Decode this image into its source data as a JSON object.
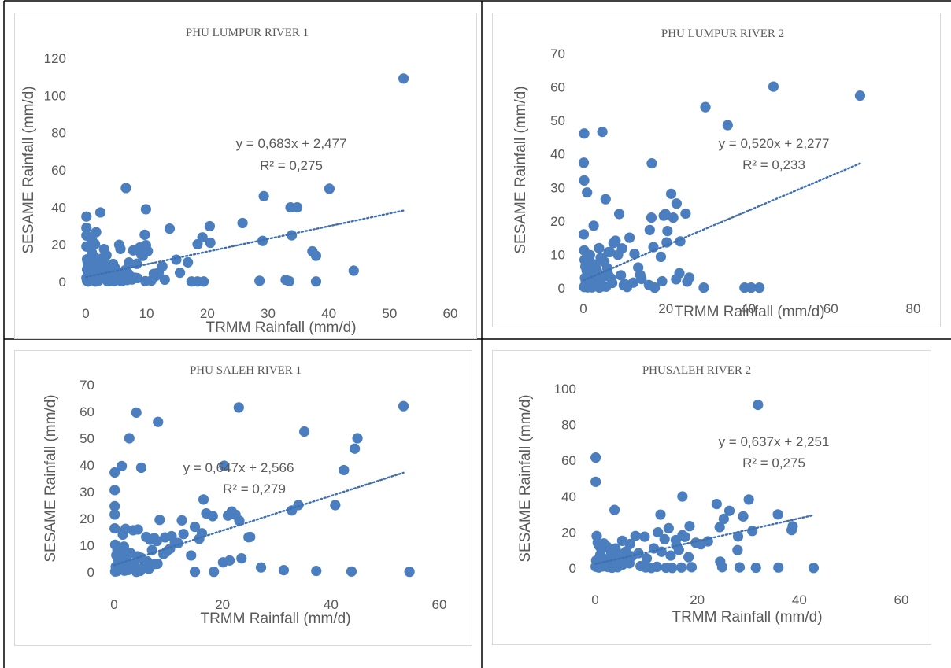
{
  "chart_data": [
    {
      "type": "scatter",
      "title": "PHU LUMPUR RIVER 1",
      "xlabel": "TRMM Rainfall (mm/d)",
      "ylabel": "SESAME Rainfall (mm/d)",
      "xlim": [
        0,
        60
      ],
      "ylim": [
        0,
        120
      ],
      "xticks": [
        "0",
        "10",
        "20",
        "30",
        "40",
        "50",
        "60"
      ],
      "yticks": [
        "0",
        "20",
        "40",
        "60",
        "80",
        "100",
        "120"
      ],
      "trendline": {
        "slope": 0.683,
        "intercept": 2.477,
        "x_range": [
          0,
          52.3
        ]
      },
      "equation": "y = 0,683x + 2,477",
      "r2_label": "R² = 0,275",
      "marker_color": "#4a7ebf",
      "trend_color": "#3e6fb0",
      "x": [
        52.3,
        6.6,
        40.1,
        29.3,
        33.7,
        34.8,
        9.9,
        25.8,
        20.4,
        37.3,
        37.9,
        13.8,
        20.5,
        19.2,
        29.1,
        33.9,
        18.4,
        14.9,
        16.8,
        44.1,
        28.6,
        32.9,
        33.5,
        37.9,
        17.4,
        18.4,
        19.4,
        15.5,
        12.6,
        9.7,
        8.9,
        9.9,
        10.2,
        9.1,
        9.4,
        7.8,
        7.1,
        8.4,
        11.2,
        12.0,
        11.5,
        13.0,
        10.8,
        0.1,
        0.1,
        0.1,
        0.1,
        0.2,
        0.3,
        0.4,
        0.6,
        0.8,
        1.0,
        1.5,
        1.7,
        2.4,
        1.9,
        3.0,
        3.4,
        2.6,
        5.5,
        5.7,
        6.5,
        7.3,
        4.2,
        4.7,
        0.2,
        0.5,
        0.7,
        1.2,
        2.2,
        2.8,
        3.5,
        4.4,
        5.0,
        5.9,
        6.8,
        8.1,
        1.1,
        1.8,
        2.7,
        3.9,
        4.8,
        6.1,
        7.6,
        0.3,
        0.9,
        1.4,
        2.0,
        3.2,
        4.1,
        5.2,
        6.4,
        0.4,
        1.3,
        2.5,
        3.6,
        4.5,
        5.6,
        6.9,
        8.5,
        9.8,
        0.2,
        0.6,
        1.6,
        2.9,
        3.7,
        0.1,
        1.0,
        2.1,
        3.3,
        4.6
      ],
      "y": [
        109.1,
        50.3,
        49.9,
        45.9,
        39.9,
        39.9,
        38.9,
        31.5,
        29.8,
        16.3,
        13.9,
        28.5,
        20.9,
        23.8,
        21.9,
        24.9,
        20.1,
        11.8,
        10.4,
        5.9,
        0.5,
        1.0,
        0.3,
        0.1,
        0.1,
        0.1,
        0.1,
        4.8,
        8.2,
        25.2,
        18.4,
        19.6,
        16.4,
        14.7,
        13.9,
        16.8,
        10.3,
        9.6,
        4.2,
        5.0,
        3.1,
        1.1,
        0.6,
        35.0,
        28.9,
        24.8,
        18.9,
        12.0,
        10.5,
        8.2,
        5.9,
        3.5,
        22.6,
        20.2,
        26.6,
        37.2,
        11.1,
        17.5,
        14.2,
        9.8,
        19.8,
        17.6,
        6.2,
        3.0,
        4.1,
        1.8,
        0.5,
        1.2,
        2.3,
        0.8,
        4.5,
        2.6,
        6.9,
        3.3,
        1.5,
        0.2,
        0.9,
        2.1,
        6.1,
        8.8,
        12.5,
        5.5,
        7.4,
        3.9,
        1.2,
        3.1,
        10.2,
        13.3,
        2.2,
        7.9,
        0.4,
        5.1,
        2.8,
        0.1,
        1.6,
        3.6,
        0.2,
        9.5,
        0.7,
        4.7,
        1.9,
        0.3,
        6.6,
        2.9,
        0.1,
        11.6,
        4.3,
        2.0,
        15.6,
        0.6,
        8.4,
        0.2
      ]
    },
    {
      "type": "scatter",
      "title": "PHU LUMPUR RIVER 2",
      "xlabel": "TRMM Rainfall (mm/d)",
      "ylabel": "SESAME Rainfall (mm/d)",
      "xlim": [
        0,
        80
      ],
      "ylim": [
        0,
        70
      ],
      "xticks": [
        "0",
        "20",
        "40",
        "60",
        "80"
      ],
      "yticks": [
        "0",
        "10",
        "20",
        "30",
        "40",
        "50",
        "60",
        "70"
      ],
      "trendline": {
        "slope": 0.52,
        "intercept": 2.277,
        "x_range": [
          0,
          67.1
        ]
      },
      "equation": "y = 0,520x + 2,277",
      "r2_label": "R² = 0,233",
      "marker_color": "#4a7ebf",
      "trend_color": "#3e6fb0",
      "x": [
        46.1,
        67.1,
        29.6,
        35.0,
        4.6,
        0.2,
        0.1,
        0.2,
        0.9,
        2.5,
        5.4,
        16.6,
        21.3,
        22.6,
        19.9,
        19.5,
        21.8,
        24.8,
        23.5,
        16.1,
        17.0,
        18.8,
        20.2,
        16.5,
        20.4,
        29.2,
        39.1,
        40.7,
        42.7,
        17.3,
        10.6,
        9.8,
        12.1,
        13.3,
        14.1,
        13.8,
        23.3,
        25.7,
        25.2,
        22.5,
        19.1,
        15.9,
        12.4,
        11.2,
        9.4,
        8.7,
        7.3,
        6.1,
        3.8,
        4.2,
        5.1,
        6.4,
        7.8,
        0.1,
        0.2,
        0.3,
        0.5,
        0.8,
        1.1,
        1.6,
        2.2,
        3.1,
        3.4,
        4.9,
        5.8,
        7.0,
        8.4,
        9.1,
        10.0,
        0.4,
        0.7,
        1.3,
        2.0,
        2.8,
        3.7,
        4.4,
        5.5,
        6.7,
        0.2,
        1.0,
        1.9,
        2.6,
        3.3,
        4.1,
        5.0,
        6.0,
        0.6,
        1.4,
        2.3,
        3.9,
        4.7,
        1.2,
        2.1,
        3.0,
        0.3,
        0.9,
        1.7,
        2.9
      ],
      "y": [
        60.1,
        57.4,
        54.0,
        48.6,
        46.6,
        46.1,
        37.4,
        32.1,
        28.5,
        18.6,
        26.5,
        37.2,
        28.1,
        25.2,
        22.1,
        21.6,
        21.0,
        22.2,
        13.9,
        17.3,
        12.2,
        9.3,
        13.6,
        21.0,
        17.0,
        0.1,
        0.1,
        0.1,
        0.1,
        0.1,
        0.3,
        0.8,
        1.6,
        6.1,
        2.7,
        3.9,
        4.4,
        3.1,
        1.9,
        2.6,
        2.0,
        0.9,
        10.2,
        15.0,
        11.8,
        22.1,
        13.4,
        10.7,
        11.9,
        9.0,
        7.8,
        10.7,
        14.1,
        16.0,
        11.2,
        8.4,
        6.4,
        5.2,
        3.9,
        9.8,
        7.2,
        4.5,
        2.7,
        8.0,
        5.9,
        1.5,
        9.9,
        3.8,
        1.2,
        3.0,
        0.6,
        2.1,
        4.8,
        6.7,
        1.0,
        3.5,
        0.4,
        2.9,
        0.3,
        0.2,
        1.4,
        0.8,
        5.1,
        2.2,
        0.5,
        4.0,
        1.7,
        0.9,
        2.5,
        0.1,
        3.3,
        1.1,
        0.2,
        6.0,
        0.5,
        1.9,
        0.7,
        4.4
      ]
    },
    {
      "type": "scatter",
      "title": "PHU SALEH RIVER 1",
      "xlabel": "TRMM Rainfall (mm/d)",
      "ylabel": "SESAME Rainfall (mm/d)",
      "xlim": [
        0,
        60
      ],
      "ylim": [
        0,
        70
      ],
      "xticks": [
        "0",
        "20",
        "40",
        "60"
      ],
      "yticks": [
        "0",
        "10",
        "20",
        "30",
        "40",
        "50",
        "60",
        "70"
      ],
      "trendline": {
        "slope": 0.647,
        "intercept": 2.566,
        "x_range": [
          0,
          53.4
        ]
      },
      "equation": "y = 0,647x + 2,566",
      "r2_label": "R² = 0,279",
      "marker_color": "#4a7ebf",
      "trend_color": "#3e6fb0",
      "x": [
        53.4,
        23.0,
        4.1,
        8.1,
        2.8,
        35.1,
        44.9,
        44.4,
        1.4,
        5.0,
        0.1,
        20.3,
        42.4,
        40.8,
        0.1,
        34.0,
        32.8,
        23.1,
        16.5,
        22.4,
        21.7,
        21.5,
        21.0,
        18.2,
        17.0,
        12.5,
        25.1,
        24.8,
        16.2,
        15.7,
        8.4,
        7.4,
        20.1,
        21.3,
        0.1,
        0.1,
        0.1,
        2.1,
        3.5,
        4.4,
        1.6,
        5.9,
        6.6,
        7.9,
        9.4,
        10.6,
        11.2,
        11.8,
        12.8,
        14.2,
        14.9,
        23.5,
        27.1,
        31.3,
        37.3,
        43.8,
        54.5,
        18.4,
        14.9,
        10.3,
        9.6,
        0.2,
        0.4,
        0.6,
        0.9,
        1.3,
        1.8,
        2.4,
        3.0,
        3.7,
        4.3,
        5.2,
        6.1,
        7.0,
        8.0,
        9.1,
        0.3,
        0.8,
        1.5,
        2.2,
        3.1,
        4.0,
        5.0,
        6.2,
        7.5,
        0.5,
        1.1,
        2.0,
        3.3,
        4.8,
        6.4,
        0.2,
        1.0,
        2.6,
        4.1,
        0.7,
        1.9,
        3.6
      ],
      "y": [
        62.0,
        61.5,
        59.6,
        56.1,
        50.0,
        52.5,
        50.0,
        46.1,
        39.6,
        39.0,
        37.2,
        39.7,
        38.1,
        25.0,
        30.6,
        25.0,
        23.0,
        19.2,
        27.1,
        21.4,
        22.6,
        21.6,
        21.1,
        20.9,
        21.9,
        19.3,
        13.1,
        13.0,
        14.5,
        12.4,
        19.5,
        12.7,
        3.6,
        4.3,
        24.6,
        21.5,
        16.3,
        16.1,
        15.6,
        15.9,
        14.0,
        13.1,
        12.1,
        11.6,
        12.9,
        13.4,
        11.0,
        10.8,
        14.2,
        6.2,
        16.9,
        5.1,
        1.7,
        0.7,
        0.4,
        0.2,
        0.1,
        0.1,
        0.1,
        8.7,
        7.5,
        10.2,
        6.3,
        8.1,
        5.4,
        3.6,
        9.5,
        4.2,
        7.1,
        2.8,
        5.9,
        1.5,
        4.0,
        8.2,
        3.1,
        6.7,
        2.0,
        4.4,
        1.1,
        6.8,
        2.5,
        0.9,
        5.3,
        1.4,
        3.0,
        0.3,
        4.7,
        0.6,
        2.2,
        0.4,
        1.2,
        0.2,
        3.4,
        0.8,
        0.1,
        1.6,
        0.5,
        2.7
      ]
    },
    {
      "type": "scatter",
      "title": "PHUSALEH RIVER 2",
      "xlabel": "TRMM Rainfall (mm/d)",
      "ylabel": "SESAME Rainfall (mm/d)",
      "xlim": [
        0,
        60
      ],
      "ylim": [
        0,
        100
      ],
      "xticks": [
        "0",
        "20",
        "40",
        "60"
      ],
      "yticks": [
        "0",
        "20",
        "40",
        "60",
        "80",
        "100"
      ],
      "trendline": {
        "slope": 0.637,
        "intercept": 2.251,
        "x_range": [
          0,
          42.8
        ]
      },
      "equation": "y = 0,637x + 2,251",
      "r2_label": "R² = 0,275",
      "marker_color": "#4a7ebf",
      "trend_color": "#3e6fb0",
      "x": [
        31.9,
        0.1,
        0.1,
        17.1,
        3.8,
        12.8,
        30.1,
        23.8,
        26.3,
        25.2,
        24.4,
        35.8,
        38.7,
        38.5,
        22.1,
        28.0,
        29.0,
        30.8,
        18.5,
        17.1,
        15.8,
        17.6,
        19.7,
        20.7,
        9.7,
        12.3,
        13.6,
        14.4,
        15.9,
        7.9,
        5.3,
        6.8,
        24.5,
        27.9,
        24.9,
        28.3,
        31.5,
        35.9,
        42.8,
        0.3,
        0.5,
        0.8,
        1.2,
        1.7,
        2.3,
        3.1,
        4.0,
        4.9,
        6.0,
        7.2,
        8.5,
        10.1,
        11.5,
        13.0,
        14.8,
        16.4,
        18.3,
        0.2,
        0.6,
        1.0,
        1.5,
        2.1,
        2.9,
        3.7,
        4.6,
        5.6,
        6.7,
        0.4,
        0.9,
        1.4,
        2.0,
        2.7,
        3.5,
        4.4,
        5.4,
        0.1,
        0.7,
        1.3,
        2.5,
        3.3,
        8.9,
        9.9,
        11.0,
        12.1,
        13.9,
        15.1,
        16.9,
        18.9
      ],
      "y": [
        91.0,
        61.6,
        48.1,
        39.9,
        32.4,
        29.8,
        38.2,
        35.7,
        31.9,
        27.4,
        22.8,
        29.9,
        23.3,
        21.2,
        14.9,
        17.6,
        28.8,
        20.7,
        23.4,
        18.3,
        15.6,
        17.4,
        14.1,
        13.3,
        17.5,
        19.9,
        16.1,
        22.2,
        12.8,
        17.9,
        15.2,
        13.4,
        3.6,
        10.0,
        0.5,
        0.4,
        0.2,
        0.3,
        0.1,
        17.9,
        14.1,
        12.4,
        10.6,
        13.7,
        12.0,
        8.8,
        10.9,
        7.5,
        9.2,
        6.6,
        8.3,
        5.4,
        11.0,
        9.1,
        7.0,
        10.2,
        6.1,
        4.2,
        3.1,
        7.4,
        5.2,
        2.3,
        6.0,
        3.8,
        1.9,
        4.5,
        2.7,
        1.5,
        2.5,
        0.9,
        3.3,
        1.2,
        4.8,
        0.5,
        2.0,
        0.8,
        0.3,
        1.6,
        0.6,
        0.2,
        1.1,
        0.4,
        0.1,
        0.7,
        0.2,
        0.1,
        0.3,
        0.5
      ]
    }
  ]
}
